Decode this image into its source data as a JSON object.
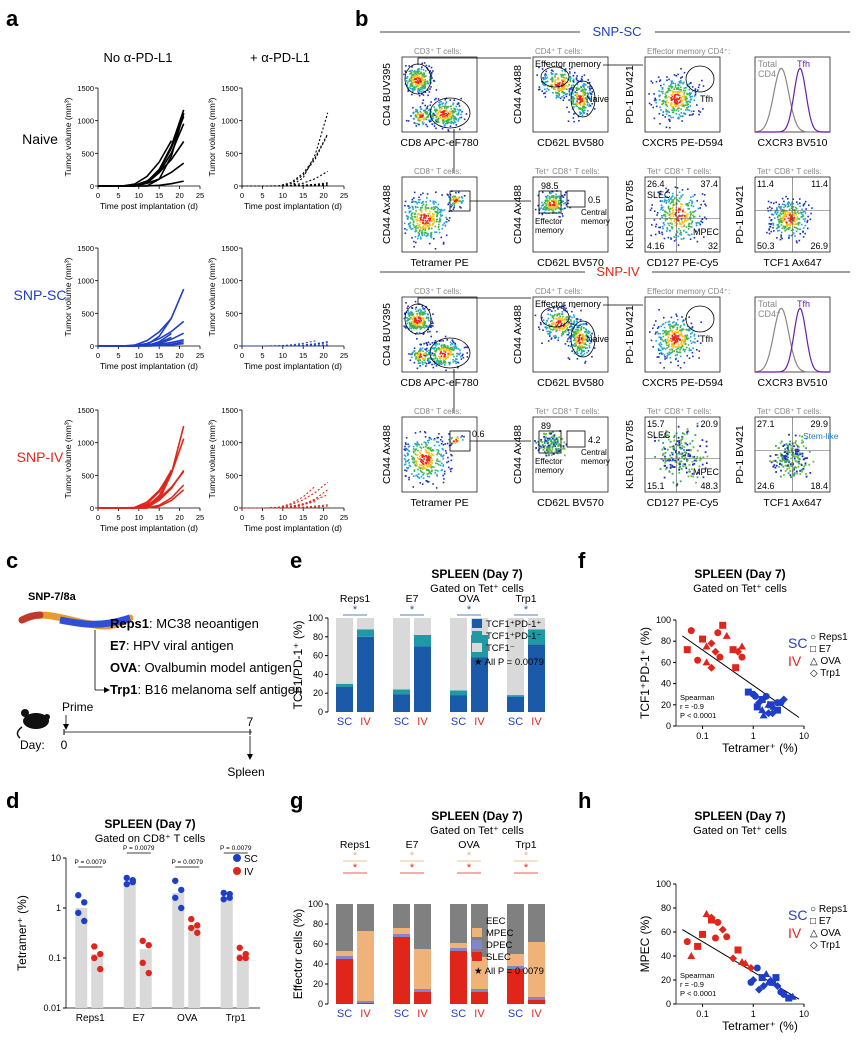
{
  "panel_letters": {
    "a": "a",
    "b": "b",
    "c": "c",
    "d": "d",
    "e": "e",
    "f": "f",
    "g": "g",
    "h": "h"
  },
  "colors": {
    "sc": "#1f3ec7",
    "iv": "#e0261b",
    "black": "#000000",
    "grey_bar": "#d9d9d9"
  },
  "panel_a": {
    "col_titles": [
      "No α-PD-L1",
      "+ α-PD-L1"
    ],
    "row_labels": [
      "Naive",
      "SNP-SC",
      "SNP-IV"
    ],
    "ylabel": "Tumor volume (mm³)",
    "xlabel": "Time post implantation (d)",
    "yticks": [
      "0",
      "500",
      "1000",
      "1500"
    ],
    "xticks": [
      "0",
      "5",
      "10",
      "15",
      "20",
      "25"
    ]
  },
  "panel_b": {
    "header_sc": "SNP-SC",
    "header_iv": "SNP-IV",
    "gates_row1": [
      "CD3⁺ T cells:",
      "CD4⁺ T cells:",
      "Effector memory CD4⁺:",
      ""
    ],
    "gates_row2": [
      "CD8⁺ T cells:",
      "Tet⁺ CD8⁺ T cells:",
      "Tet⁺ CD8⁺ T cells:",
      "Tet⁺ CD8⁺ T cells:"
    ],
    "row1_y": [
      "CD4 BUV395",
      "CD44 Ax488",
      "PD-1 BV421",
      ""
    ],
    "row1_x": [
      "CD8 APC-eF780",
      "CD62L BV580",
      "CXCR5 PE-D594",
      "CXCR3 BV510"
    ],
    "row2_y": [
      "CD44 Ax488",
      "CD44 Ax488",
      "KLRG1 BV785",
      "PD-1 BV421"
    ],
    "row2_x": [
      "Tetramer PE",
      "CD62L BV570",
      "CD127 PE-Cy5",
      "TCF1 Ax647"
    ],
    "labels": {
      "effector_memory": "Effector memory",
      "naive": "Naive",
      "tfh": "Tfh",
      "total_cd4": "Total CD4",
      "slec": "SLEC",
      "mpec": "MPEC",
      "central_memory": "Central memory",
      "effector_memory2": "Effector memory",
      "stem_like": "Stem-like"
    },
    "sc_numbers": {
      "em": "98.5",
      "cm": "0.5",
      "slec": "26.4",
      "tr": "37.4",
      "bl": "4.16",
      "br": "32",
      "p_tl": "11.4",
      "p_tr": "11.4",
      "p_bl": "50.3",
      "p_br": "26.9"
    },
    "iv_numbers": {
      "tet": "0.6",
      "em": "89",
      "cm": "4.2",
      "slec": "15.7",
      "tr": "20.9",
      "bl": "15.1",
      "br": "48.3",
      "p_tl": "27.1",
      "p_tr": "29.9",
      "p_bl": "24.6",
      "p_br": "18.4"
    },
    "cd4_plus": "CD4⁺"
  },
  "panel_c": {
    "construct": "SNP-7/8a",
    "antigens": [
      {
        "name": "Reps1",
        "desc": ": MC38 neoantigen"
      },
      {
        "name": "E7",
        "desc": ": HPV viral antigen"
      },
      {
        "name": "OVA",
        "desc": ": Ovalbumin model antigen"
      },
      {
        "name": "Trp1",
        "desc": ": B16 melanoma self antigen"
      }
    ],
    "prime": "Prime",
    "day": "Day:",
    "day0": "0",
    "day7": "7",
    "spleen": "Spleen"
  },
  "panel_d": {
    "title": "SPLEEN (Day 7)",
    "subtitle": "Gated on CD8⁺ T cells",
    "ylabel": "Tetramer⁺ (%)",
    "legend": [
      "SC",
      "IV"
    ],
    "categories": [
      "Reps1",
      "E7",
      "OVA",
      "Trp1"
    ],
    "pvals": [
      "P = 0.0079",
      "P = 0.0079",
      "P = 0.0079",
      "P = 0.0079"
    ],
    "yticks": [
      "0.01",
      "0.1",
      "1",
      "10"
    ]
  },
  "panel_e": {
    "title": "SPLEEN (Day 7)",
    "subtitle": "Gated on Tet⁺ cells",
    "ylabel": "TCF1/PD-1⁺ (%)",
    "categories": [
      "Reps1",
      "E7",
      "OVA",
      "Trp1"
    ],
    "xgroup": [
      "SC",
      "IV"
    ],
    "legend": [
      "TCF1⁺PD-1⁺",
      "TCF1⁺PD-1⁻",
      "TCF1⁻"
    ],
    "note": "★ All P = 0.0079",
    "yticks": [
      "0",
      "20",
      "40",
      "60",
      "80",
      "100"
    ]
  },
  "panel_f": {
    "title": "SPLEEN (Day 7)",
    "subtitle": "Gated on Tet⁺ cells",
    "ylabel": "TCF1⁺PD-1⁺ (%)",
    "xlabel": "Tetramer⁺ (%)",
    "legend_groups": [
      "SC",
      "IV"
    ],
    "legend_shapes": [
      "○ Reps1",
      "□ E7",
      "△ OVA",
      "◇ Trp1"
    ],
    "stats": [
      "Spearman",
      "r = -0.9",
      "P < 0.0001"
    ],
    "yticks": [
      "0",
      "20",
      "40",
      "60",
      "80",
      "100"
    ],
    "xticks": [
      "0.1",
      "1",
      "10"
    ]
  },
  "panel_g": {
    "title": "SPLEEN (Day 7)",
    "subtitle": "Gated on Tet⁺ cells",
    "ylabel": "Effector cells (%)",
    "categories": [
      "Reps1",
      "E7",
      "OVA",
      "Trp1"
    ],
    "xgroup": [
      "SC",
      "IV"
    ],
    "legend": [
      "EEC",
      "MPEC",
      "DPEC",
      "SLEC"
    ],
    "note": "★ All P = 0.0079",
    "yticks": [
      "0",
      "20",
      "40",
      "60",
      "80",
      "100"
    ]
  },
  "panel_h": {
    "title": "SPLEEN (Day 7)",
    "subtitle": "Gated on Tet⁺ cells",
    "ylabel": "MPEC (%)",
    "xlabel": "Tetramer⁺ (%)",
    "legend_groups": [
      "SC",
      "IV"
    ],
    "legend_shapes": [
      "○ Reps1",
      "□ E7",
      "△ OVA",
      "◇ Trp1"
    ],
    "stats": [
      "Spearman",
      "r = -0.9",
      "P < 0.0001"
    ],
    "yticks": [
      "0",
      "20",
      "40",
      "60",
      "80",
      "100"
    ],
    "xticks": [
      "0.1",
      "1",
      "10"
    ]
  },
  "chart_data": [
    {
      "id": "d",
      "type": "bar",
      "title": "SPLEEN (Day 7)",
      "ylabel": "Tetramer⁺ (%)",
      "yscale": "log",
      "ylim": [
        0.01,
        10
      ],
      "categories": [
        "Reps1",
        "E7",
        "OVA",
        "Trp1"
      ],
      "series": [
        {
          "name": "SC",
          "values": [
            1.0,
            3.3,
            2.0,
            1.6
          ],
          "points": [
            [
              1.8,
              1.3,
              0.8,
              0.55
            ],
            [
              4.0,
              3.3,
              3.0,
              3.6
            ],
            [
              3.5,
              2.3,
              1.6,
              1.0
            ],
            [
              2.0,
              1.6,
              1.5,
              1.9
            ]
          ]
        },
        {
          "name": "IV",
          "values": [
            0.12,
            0.15,
            0.45,
            0.12
          ],
          "points": [
            [
              0.17,
              0.12,
              0.1,
              0.06
            ],
            [
              0.22,
              0.18,
              0.08,
              0.05
            ],
            [
              0.6,
              0.45,
              0.4,
              0.32
            ],
            [
              0.16,
              0.12,
              0.1,
              0.1
            ]
          ]
        }
      ]
    },
    {
      "id": "e",
      "type": "bar",
      "stacked": true,
      "title": "SPLEEN (Day 7)",
      "ylabel": "TCF1/PD-1⁺ (%)",
      "ylim": [
        0,
        100
      ],
      "categories": [
        "Reps1 SC",
        "Reps1 IV",
        "E7 SC",
        "E7 IV",
        "OVA SC",
        "OVA IV",
        "Trp1 SC",
        "Trp1 IV"
      ],
      "series": [
        {
          "name": "TCF1⁺PD-1⁺",
          "values": [
            27,
            80,
            19,
            70,
            18,
            58,
            16,
            72
          ]
        },
        {
          "name": "TCF1⁺PD-1⁻",
          "values": [
            3,
            8,
            5,
            12,
            5,
            24,
            2,
            16
          ]
        },
        {
          "name": "TCF1⁻",
          "values": [
            70,
            12,
            76,
            18,
            77,
            18,
            82,
            12
          ]
        }
      ]
    },
    {
      "id": "f",
      "type": "scatter",
      "xscale": "log",
      "xlim": [
        0.03,
        10
      ],
      "ylim": [
        0,
        100
      ],
      "xlabel": "Tetramer⁺ (%)",
      "ylabel": "TCF1⁺PD-1⁺ (%)",
      "series": [
        {
          "name": "SC",
          "x": [
            1.0,
            1.5,
            2.0,
            1.3,
            3.5,
            3.0,
            2.5,
            4.0,
            1.8,
            2.2,
            1.5,
            2.0,
            1.1,
            0.8,
            1.6,
            2.4,
            3.0,
            1.2
          ],
          "y": [
            30,
            25,
            20,
            22,
            22,
            15,
            18,
            25,
            28,
            20,
            15,
            12,
            28,
            32,
            10,
            12,
            22,
            18
          ]
        },
        {
          "name": "IV",
          "x": [
            0.06,
            0.1,
            0.12,
            0.15,
            0.2,
            0.25,
            0.3,
            0.5,
            0.6,
            0.4,
            0.12,
            0.18,
            0.08,
            0.45,
            0.6,
            0.15,
            0.22,
            0.05
          ],
          "y": [
            90,
            82,
            75,
            78,
            88,
            95,
            85,
            70,
            65,
            72,
            60,
            70,
            62,
            55,
            75,
            55,
            65,
            72
          ]
        }
      ]
    },
    {
      "id": "g",
      "type": "bar",
      "stacked": true,
      "title": "SPLEEN (Day 7)",
      "ylabel": "Effector cells (%)",
      "ylim": [
        0,
        100
      ],
      "categories": [
        "Reps1 SC",
        "Reps1 IV",
        "E7 SC",
        "E7 IV",
        "OVA SC",
        "OVA IV",
        "Trp1 SC",
        "Trp1 IV"
      ],
      "series": [
        {
          "name": "SLEC",
          "values": [
            45,
            1,
            67,
            12,
            53,
            12,
            35,
            4
          ]
        },
        {
          "name": "DPEC",
          "values": [
            3,
            2,
            3,
            3,
            3,
            3,
            3,
            3
          ]
        },
        {
          "name": "MPEC",
          "values": [
            5,
            70,
            6,
            40,
            5,
            32,
            12,
            55
          ]
        },
        {
          "name": "EEC",
          "values": [
            47,
            27,
            24,
            45,
            39,
            53,
            50,
            38
          ]
        }
      ]
    },
    {
      "id": "h",
      "type": "scatter",
      "xscale": "log",
      "xlim": [
        0.03,
        10
      ],
      "ylim": [
        0,
        100
      ],
      "xlabel": "Tetramer⁺ (%)",
      "ylabel": "MPEC (%)",
      "series": [
        {
          "name": "SC",
          "x": [
            1.2,
            1.5,
            2.0,
            3.0,
            3.5,
            2.4,
            1.8,
            1.0,
            4.0,
            5.0,
            2.2,
            1.3,
            0.9,
            2.8,
            6.0,
            1.6
          ],
          "y": [
            30,
            22,
            18,
            15,
            10,
            18,
            25,
            20,
            8,
            5,
            20,
            12,
            18,
            22,
            6,
            15
          ]
        },
        {
          "name": "IV",
          "x": [
            0.05,
            0.1,
            0.12,
            0.15,
            0.2,
            0.08,
            0.06,
            0.25,
            0.3,
            0.5,
            0.6,
            0.4,
            0.18,
            0.15,
            0.7,
            0.9
          ],
          "y": [
            52,
            58,
            75,
            72,
            68,
            48,
            40,
            62,
            56,
            45,
            35,
            38,
            55,
            70,
            34,
            30
          ]
        }
      ]
    }
  ]
}
